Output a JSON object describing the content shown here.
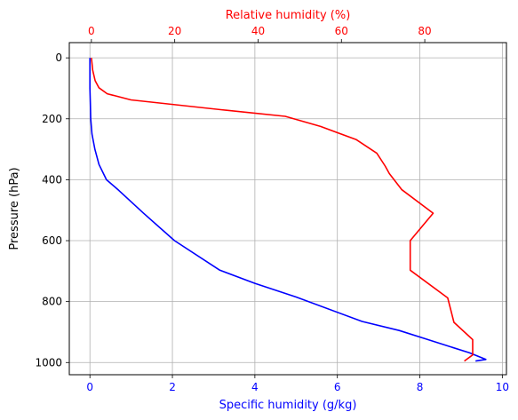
{
  "chart_data": {
    "type": "line",
    "title": "",
    "ylabel": "Pressure (hPa)",
    "ylim": [
      1040,
      -50
    ],
    "yticks": [
      0,
      200,
      400,
      600,
      800,
      1000
    ],
    "grid": true,
    "axes": {
      "bottom": {
        "label": "Specific humidity (g/kg)",
        "color": "#0000ff",
        "lim": [
          -0.5,
          10.1
        ],
        "ticks": [
          0,
          2,
          4,
          6,
          8,
          10
        ]
      },
      "top": {
        "label": "Relative humidity (%)",
        "color": "#ff0000",
        "lim": [
          -5.3,
          99.6
        ],
        "ticks": [
          0,
          20,
          40,
          60,
          80
        ]
      }
    },
    "series": [
      {
        "axis": "bottom",
        "color": "#0000ff",
        "points": [
          [
            0.0,
            0
          ],
          [
            0.0,
            50
          ],
          [
            0.0,
            100
          ],
          [
            0.01,
            150
          ],
          [
            0.02,
            200
          ],
          [
            0.05,
            250
          ],
          [
            0.12,
            300
          ],
          [
            0.22,
            350
          ],
          [
            0.4,
            400
          ],
          [
            0.7,
            435
          ],
          [
            1.3,
            510
          ],
          [
            2.05,
            600
          ],
          [
            3.15,
            697
          ],
          [
            4.0,
            740
          ],
          [
            5.0,
            785
          ],
          [
            6.6,
            865
          ],
          [
            7.5,
            895
          ],
          [
            8.2,
            925
          ],
          [
            9.2,
            968
          ],
          [
            9.6,
            990
          ],
          [
            9.35,
            995
          ]
        ]
      },
      {
        "axis": "top",
        "color": "#ff0000",
        "points": [
          [
            0.0,
            0
          ],
          [
            0.3,
            40
          ],
          [
            0.9,
            75
          ],
          [
            1.8,
            98
          ],
          [
            3.8,
            118
          ],
          [
            9.5,
            138
          ],
          [
            31.0,
            170
          ],
          [
            46.5,
            192
          ],
          [
            55.0,
            225
          ],
          [
            63.5,
            268
          ],
          [
            68.5,
            313
          ],
          [
            70.5,
            355
          ],
          [
            71.5,
            380
          ],
          [
            74.5,
            433
          ],
          [
            82.0,
            510
          ],
          [
            76.5,
            600
          ],
          [
            76.5,
            697
          ],
          [
            85.5,
            788
          ],
          [
            87.0,
            868
          ],
          [
            91.5,
            925
          ],
          [
            91.5,
            975
          ],
          [
            89.5,
            995
          ]
        ]
      }
    ]
  }
}
